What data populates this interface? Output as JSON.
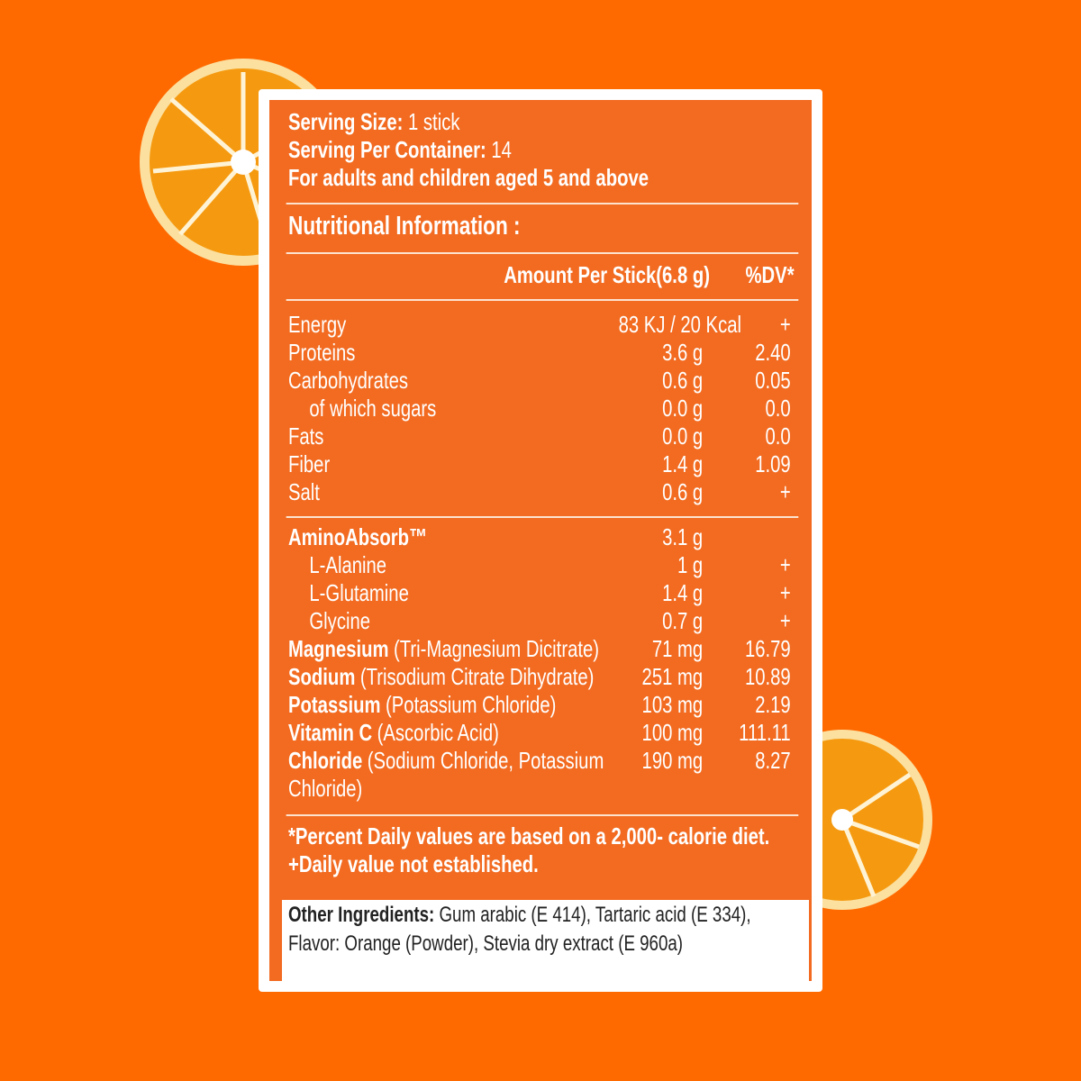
{
  "serving": {
    "size_label": "Serving Size:",
    "size": "1 stick",
    "per_container_label": "Serving Per Container:",
    "per_container": "14",
    "audience": "For adults and children aged 5 and above"
  },
  "section_title": "Nutritional Information :",
  "columns": {
    "amount": "Amount Per Stick(6.8 g)",
    "dv": "%DV*"
  },
  "nutrients": [
    {
      "name": "Energy",
      "amount": "83 KJ / 20 Kcal",
      "dv": "+"
    },
    {
      "name": "Proteins",
      "amount": "3.6 g",
      "dv": "2.40"
    },
    {
      "name": "Carbohydrates",
      "amount": "0.6 g",
      "dv": "0.05",
      "sub": [
        {
          "name": "of which sugars",
          "amount": "0.0 g",
          "dv": "0.0"
        }
      ]
    },
    {
      "name": "Fats",
      "amount": "0.0 g",
      "dv": "0.0"
    },
    {
      "name": "Fiber",
      "amount": "1.4 g",
      "dv": "1.09"
    },
    {
      "name": "Salt",
      "amount": "0.6 g",
      "dv": "+"
    }
  ],
  "blend": {
    "name": "AminoAbsorb™",
    "amount": "3.1 g",
    "components": [
      {
        "name": "L-Alanine",
        "amount": "1 g",
        "dv": "+"
      },
      {
        "name": "L-Glutamine",
        "amount": "1.4 g",
        "dv": "+"
      },
      {
        "name": "Glycine",
        "amount": "0.7 g",
        "dv": "+"
      }
    ]
  },
  "minerals": [
    {
      "name": "Magnesium",
      "source": "(Tri-Magnesium Dicitrate)",
      "amount": "71 mg",
      "dv": "16.79"
    },
    {
      "name": "Sodium",
      "source": "(Trisodium Citrate Dihydrate)",
      "amount": "251 mg",
      "dv": "10.89"
    },
    {
      "name": "Potassium",
      "source": "(Potassium Chloride)",
      "amount": "103 mg",
      "dv": "2.19"
    },
    {
      "name": "Vitamin C",
      "source": "(Ascorbic Acid)",
      "amount": "100 mg",
      "dv": "111.11"
    },
    {
      "name": "Chloride",
      "source": "(Sodium Chloride, Potassium Chloride)",
      "amount": "190 mg",
      "dv": "8.27"
    }
  ],
  "footnotes": [
    "*Percent Daily values are based on a 2,000- calorie diet.",
    "+Daily value not established."
  ],
  "ingredients": {
    "label": "Other Ingredients:",
    "text": "Gum arabic (E 414), Tartaric acid (E 334), Flavor: Orange (Powder), Stevia dry extract (E 960a)"
  }
}
